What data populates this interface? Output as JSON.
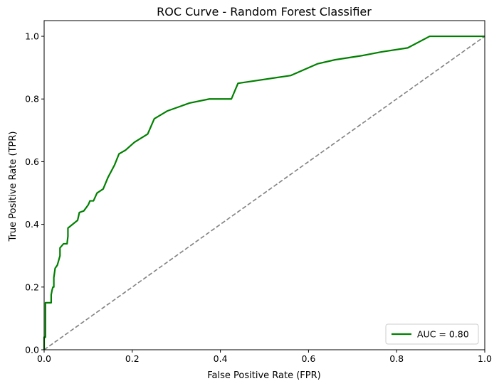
{
  "chart_data": {
    "type": "line",
    "title": "ROC Curve - Random Forest Classifier",
    "xlabel": "False Positive Rate (FPR)",
    "ylabel": "True Positive Rate (TPR)",
    "xlim": [
      0.0,
      1.0
    ],
    "ylim": [
      0.0,
      1.05
    ],
    "xticks": [
      "0.0",
      "0.2",
      "0.4",
      "0.6",
      "0.8",
      "1.0"
    ],
    "yticks": [
      "0.0",
      "0.2",
      "0.4",
      "0.6",
      "0.8",
      "1.0"
    ],
    "grid": false,
    "legend_position": "lower-right",
    "series": [
      {
        "name": "AUC = 0.80",
        "color": "#008000",
        "style": "solid",
        "points": [
          [
            0.0,
            0.0
          ],
          [
            0.0,
            0.04
          ],
          [
            0.003,
            0.04
          ],
          [
            0.003,
            0.15
          ],
          [
            0.016,
            0.15
          ],
          [
            0.016,
            0.175
          ],
          [
            0.018,
            0.19
          ],
          [
            0.02,
            0.2
          ],
          [
            0.022,
            0.2
          ],
          [
            0.022,
            0.23
          ],
          [
            0.025,
            0.26
          ],
          [
            0.03,
            0.27
          ],
          [
            0.034,
            0.29
          ],
          [
            0.036,
            0.3
          ],
          [
            0.036,
            0.325
          ],
          [
            0.044,
            0.338
          ],
          [
            0.052,
            0.338
          ],
          [
            0.054,
            0.362
          ],
          [
            0.054,
            0.388
          ],
          [
            0.076,
            0.413
          ],
          [
            0.08,
            0.438
          ],
          [
            0.09,
            0.443
          ],
          [
            0.1,
            0.462
          ],
          [
            0.104,
            0.475
          ],
          [
            0.112,
            0.475
          ],
          [
            0.12,
            0.5
          ],
          [
            0.134,
            0.513
          ],
          [
            0.145,
            0.55
          ],
          [
            0.16,
            0.59
          ],
          [
            0.17,
            0.625
          ],
          [
            0.185,
            0.637
          ],
          [
            0.205,
            0.662
          ],
          [
            0.235,
            0.688
          ],
          [
            0.25,
            0.737
          ],
          [
            0.28,
            0.762
          ],
          [
            0.33,
            0.787
          ],
          [
            0.375,
            0.8
          ],
          [
            0.425,
            0.8
          ],
          [
            0.44,
            0.85
          ],
          [
            0.56,
            0.875
          ],
          [
            0.62,
            0.912
          ],
          [
            0.66,
            0.925
          ],
          [
            0.72,
            0.938
          ],
          [
            0.765,
            0.95
          ],
          [
            0.825,
            0.963
          ],
          [
            0.875,
            1.0
          ],
          [
            1.0,
            1.0
          ]
        ]
      },
      {
        "name": "",
        "color": "#808080",
        "style": "dashed",
        "points": [
          [
            0.0,
            0.0
          ],
          [
            1.0,
            1.0
          ]
        ]
      }
    ]
  }
}
